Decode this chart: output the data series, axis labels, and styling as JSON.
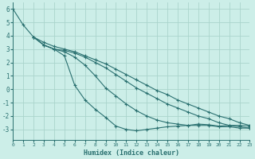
{
  "xlabel": "Humidex (Indice chaleur)",
  "background_color": "#cceee8",
  "grid_color": "#aad4cc",
  "line_color": "#2a7070",
  "xlim": [
    0,
    23
  ],
  "ylim": [
    -3.8,
    6.5
  ],
  "xticks": [
    0,
    1,
    2,
    3,
    4,
    5,
    6,
    7,
    8,
    9,
    10,
    11,
    12,
    13,
    14,
    15,
    16,
    17,
    18,
    19,
    20,
    21,
    22,
    23
  ],
  "yticks": [
    -3,
    -2,
    -1,
    0,
    1,
    2,
    3,
    4,
    5,
    6
  ],
  "curve1_x": [
    0,
    1,
    2,
    3,
    4,
    5,
    6,
    7,
    8,
    9,
    10,
    11,
    12,
    13,
    14,
    15,
    16,
    17,
    18,
    19,
    20,
    21,
    22,
    23
  ],
  "curve1_y": [
    6.0,
    4.8,
    3.9,
    3.5,
    3.2,
    3.0,
    2.8,
    2.5,
    2.2,
    1.9,
    1.5,
    1.1,
    0.7,
    0.3,
    -0.1,
    -0.4,
    -0.8,
    -1.1,
    -1.4,
    -1.7,
    -2.0,
    -2.2,
    -2.5,
    -2.7
  ],
  "curve2_x": [
    2,
    3,
    4,
    5,
    6,
    7,
    8,
    9,
    10,
    11,
    12,
    13,
    14,
    15,
    16,
    17,
    18,
    19,
    20,
    21,
    22,
    23
  ],
  "curve2_y": [
    3.9,
    3.3,
    3.0,
    2.9,
    2.7,
    2.4,
    2.0,
    1.6,
    1.1,
    0.6,
    0.1,
    -0.3,
    -0.7,
    -1.1,
    -1.4,
    -1.7,
    -2.0,
    -2.2,
    -2.5,
    -2.7,
    -2.8,
    -2.9
  ],
  "curve3_x": [
    2,
    3,
    4,
    5,
    6,
    7,
    8,
    9,
    10,
    11,
    12,
    13,
    14,
    15,
    16,
    17,
    18,
    19,
    20,
    21,
    22,
    23
  ],
  "curve3_y": [
    3.9,
    3.3,
    3.0,
    2.8,
    2.4,
    1.8,
    1.0,
    0.1,
    -0.5,
    -1.1,
    -1.6,
    -2.0,
    -2.3,
    -2.5,
    -2.6,
    -2.7,
    -2.7,
    -2.7,
    -2.8,
    -2.8,
    -2.9,
    -2.9
  ],
  "curve4_x": [
    2,
    3,
    4,
    5,
    6,
    7,
    8,
    9,
    10,
    11,
    12,
    13,
    14,
    15,
    16,
    17,
    18,
    19,
    20,
    21,
    22,
    23
  ],
  "curve4_y": [
    3.9,
    3.3,
    3.0,
    2.5,
    0.3,
    -0.8,
    -1.5,
    -2.1,
    -2.75,
    -3.0,
    -3.1,
    -3.0,
    -2.9,
    -2.8,
    -2.75,
    -2.7,
    -2.6,
    -2.65,
    -2.75,
    -2.7,
    -2.7,
    -2.75
  ]
}
